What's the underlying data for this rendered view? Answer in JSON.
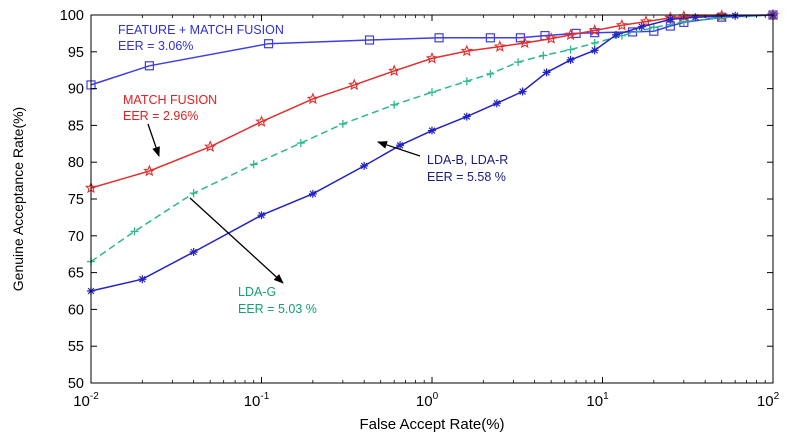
{
  "chart_data": {
    "type": "line",
    "title": "",
    "xlabel": "False Accept Rate(%)",
    "ylabel": "Genuine Acceptance Rate(%)",
    "xscale": "log",
    "xlim": [
      0.01,
      100
    ],
    "ylim": [
      50,
      100
    ],
    "grid": false,
    "x_ticks": [
      {
        "value": 0.01,
        "base": "10",
        "exp": "-2"
      },
      {
        "value": 0.1,
        "base": "10",
        "exp": "-1"
      },
      {
        "value": 1,
        "base": "10",
        "exp": "0"
      },
      {
        "value": 10,
        "base": "10",
        "exp": "1"
      },
      {
        "value": 100,
        "base": "10",
        "exp": "2"
      }
    ],
    "y_ticks": [
      "50",
      "55",
      "60",
      "65",
      "70",
      "75",
      "80",
      "85",
      "90",
      "95",
      "100"
    ],
    "series": [
      {
        "color": "#3f3fe0",
        "marker": "square",
        "dash": "solid",
        "x": [
          0.01,
          0.022,
          0.11,
          0.43,
          1.1,
          2.2,
          3.3,
          4.6,
          7.0,
          9.0,
          15,
          20,
          25,
          30,
          50,
          100
        ],
        "y": [
          90.5,
          93.1,
          96.1,
          96.6,
          96.9,
          96.9,
          96.9,
          97.2,
          97.5,
          97.6,
          97.7,
          97.8,
          98.5,
          99.0,
          99.7,
          100
        ]
      },
      {
        "color": "#e03030",
        "marker": "star",
        "dash": "solid",
        "x": [
          0.01,
          0.022,
          0.05,
          0.1,
          0.2,
          0.35,
          0.6,
          1.0,
          1.6,
          2.5,
          3.5,
          5.0,
          6.5,
          9.0,
          13,
          18,
          25,
          30,
          50,
          100
        ],
        "y": [
          76.5,
          78.8,
          82.1,
          85.5,
          88.6,
          90.5,
          92.4,
          94.1,
          95.1,
          95.7,
          96.2,
          96.8,
          97.3,
          97.9,
          98.6,
          99.1,
          99.6,
          99.8,
          99.9,
          100
        ]
      },
      {
        "color": "#2eb890",
        "marker": "plus",
        "dash": "dashed",
        "x": [
          0.01,
          0.018,
          0.04,
          0.09,
          0.17,
          0.3,
          0.6,
          1.0,
          1.6,
          2.2,
          3.2,
          4.5,
          6.5,
          9.0,
          13,
          20,
          30,
          50,
          100
        ],
        "y": [
          66.5,
          70.6,
          75.8,
          79.7,
          82.6,
          85.2,
          87.8,
          89.5,
          91.0,
          92.0,
          93.6,
          94.5,
          95.3,
          96.2,
          97.2,
          98.3,
          99.1,
          99.6,
          100
        ]
      },
      {
        "color": "#2323c0",
        "marker": "asterisk",
        "dash": "solid",
        "x": [
          0.01,
          0.02,
          0.04,
          0.1,
          0.2,
          0.4,
          0.65,
          1.0,
          1.6,
          2.4,
          3.4,
          4.7,
          6.5,
          9.0,
          12,
          17,
          25,
          35,
          60,
          100
        ],
        "y": [
          62.5,
          64.1,
          67.8,
          72.8,
          75.7,
          79.5,
          82.3,
          84.3,
          86.2,
          88.0,
          89.6,
          92.2,
          93.9,
          95.2,
          97.3,
          98.4,
          99.4,
          99.7,
          99.9,
          100
        ]
      }
    ],
    "annotations": [
      {
        "line1": "FEATURE + MATCH FUSION",
        "line2": "EER = 3.06%",
        "color": "#3030d0"
      },
      {
        "line1": "MATCH FUSION",
        "line2": "EER = 2.96%",
        "color": "#e02020"
      },
      {
        "line1": "LDA-B, LDA-R",
        "line2": "EER = 5.58 %",
        "color": "#1a1a80"
      },
      {
        "line1": "LDA-G",
        "line2": "EER = 5.03 %",
        "color": "#14a070"
      }
    ]
  }
}
